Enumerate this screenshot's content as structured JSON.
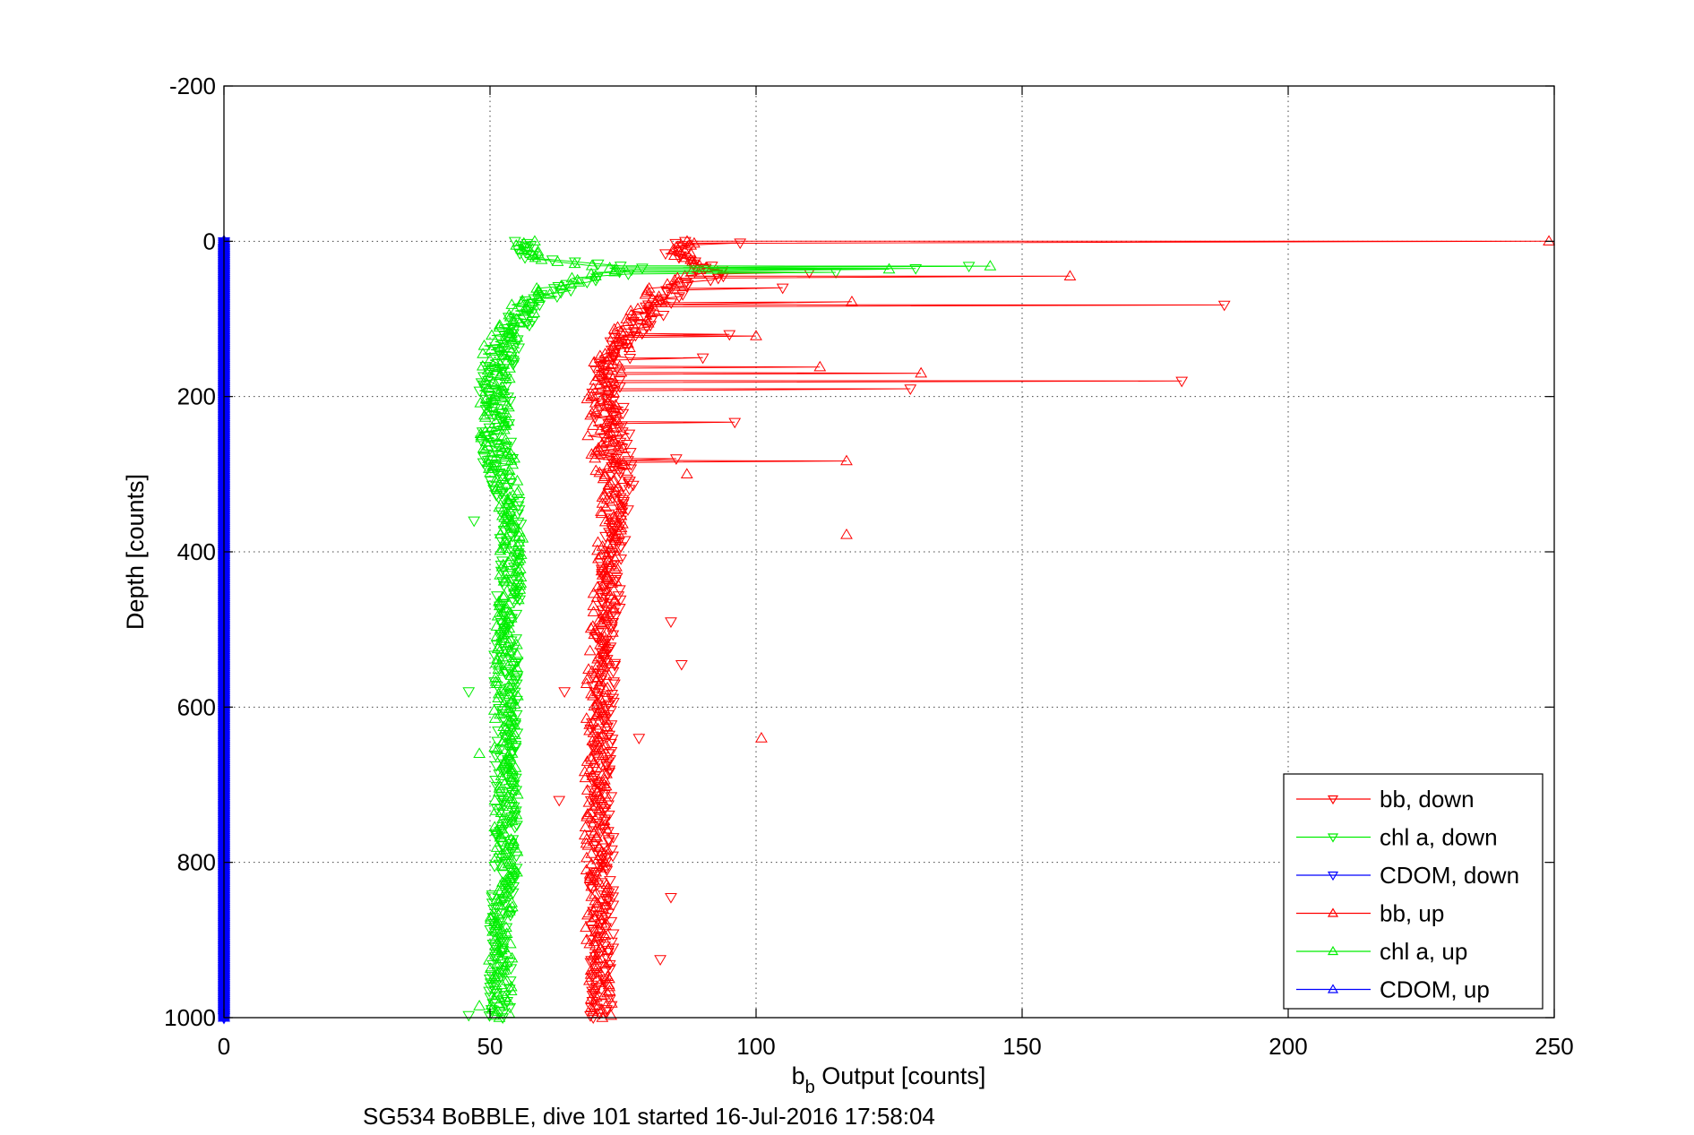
{
  "chart_data": {
    "type": "scatter",
    "xlabel_main": "b",
    "xlabel_sub": "b",
    "xlabel_rest": " Output [counts]",
    "ylabel": "Depth [counts]",
    "caption": "SG534 BoBBLE, dive 101 started 16-Jul-2016 17:58:04",
    "xlim": [
      0,
      250
    ],
    "ylim": [
      -200,
      1000
    ],
    "y_reversed": true,
    "grid": true,
    "legend_position": "bottom-right",
    "x_ticks": [
      "0",
      "50",
      "100",
      "150",
      "200",
      "250"
    ],
    "y_ticks": [
      "-200",
      "0",
      "200",
      "400",
      "600",
      "800",
      "1000"
    ],
    "series": [
      {
        "name": "bb, down",
        "color": "#ff0000",
        "marker": "triangle-down",
        "profile": [
          [
            0,
            86
          ],
          [
            20,
            84
          ],
          [
            40,
            95
          ],
          [
            60,
            85
          ],
          [
            80,
            82
          ],
          [
            100,
            79
          ],
          [
            130,
            75
          ],
          [
            160,
            73
          ],
          [
            200,
            72
          ],
          [
            240,
            73
          ],
          [
            280,
            74
          ],
          [
            300,
            75
          ],
          [
            350,
            74
          ],
          [
            400,
            73
          ],
          [
            500,
            72
          ],
          [
            600,
            71
          ],
          [
            700,
            71
          ],
          [
            800,
            71
          ],
          [
            900,
            71
          ],
          [
            1000,
            71
          ]
        ],
        "spikes": [
          [
            2,
            97
          ],
          [
            40,
            110
          ],
          [
            60,
            105
          ],
          [
            82,
            188
          ],
          [
            120,
            95
          ],
          [
            150,
            90
          ],
          [
            180,
            180
          ],
          [
            190,
            129
          ],
          [
            233,
            96
          ],
          [
            280,
            85
          ]
        ],
        "outliers": [
          [
            580,
            64
          ],
          [
            640,
            78
          ],
          [
            720,
            63
          ],
          [
            845,
            84
          ],
          [
            925,
            82
          ],
          [
            490,
            84
          ],
          [
            545,
            86
          ]
        ]
      },
      {
        "name": "chl a, down",
        "color": "#00ee00",
        "marker": "triangle-down",
        "profile": [
          [
            0,
            56
          ],
          [
            20,
            57
          ],
          [
            35,
            80
          ],
          [
            50,
            68
          ],
          [
            70,
            60
          ],
          [
            100,
            56
          ],
          [
            130,
            53
          ],
          [
            170,
            51
          ],
          [
            200,
            51
          ],
          [
            250,
            51
          ],
          [
            300,
            52
          ],
          [
            350,
            54
          ],
          [
            400,
            54
          ],
          [
            500,
            53
          ],
          [
            600,
            53
          ],
          [
            700,
            53
          ],
          [
            800,
            53
          ],
          [
            900,
            52
          ],
          [
            1000,
            52
          ]
        ],
        "spikes": [
          [
            32,
            140
          ],
          [
            35,
            130
          ],
          [
            40,
            115
          ]
        ],
        "outliers": [
          [
            360,
            47
          ],
          [
            580,
            46
          ],
          [
            997,
            46
          ]
        ]
      },
      {
        "name": "CDOM, down",
        "color": "#0000ff",
        "marker": "triangle-down",
        "constant_x": 0
      },
      {
        "name": "bb, up",
        "color": "#ff0000",
        "marker": "triangle-up",
        "profile": [
          [
            0,
            87
          ],
          [
            20,
            86
          ],
          [
            40,
            90
          ],
          [
            60,
            83
          ],
          [
            80,
            80
          ],
          [
            100,
            78
          ],
          [
            130,
            74
          ],
          [
            160,
            72
          ],
          [
            200,
            71
          ],
          [
            240,
            71
          ],
          [
            280,
            72
          ],
          [
            300,
            73
          ],
          [
            350,
            73
          ],
          [
            400,
            72
          ],
          [
            500,
            71
          ],
          [
            600,
            70
          ],
          [
            700,
            70
          ],
          [
            800,
            70
          ],
          [
            900,
            70
          ],
          [
            1000,
            71
          ]
        ],
        "spikes": [
          [
            0,
            249
          ],
          [
            45,
            159
          ],
          [
            78,
            118
          ],
          [
            162,
            112
          ],
          [
            170,
            131
          ],
          [
            283,
            117
          ],
          [
            122,
            100
          ]
        ],
        "outliers": [
          [
            378,
            117
          ],
          [
            640,
            101
          ],
          [
            300,
            87
          ]
        ]
      },
      {
        "name": "chl a, up",
        "color": "#00ee00",
        "marker": "triangle-up",
        "profile": [
          [
            0,
            57
          ],
          [
            20,
            57
          ],
          [
            35,
            75
          ],
          [
            50,
            66
          ],
          [
            70,
            58
          ],
          [
            100,
            55
          ],
          [
            130,
            52
          ],
          [
            170,
            51
          ],
          [
            200,
            51
          ],
          [
            250,
            51
          ],
          [
            300,
            53
          ],
          [
            350,
            54
          ],
          [
            400,
            54
          ],
          [
            500,
            53
          ],
          [
            600,
            53
          ],
          [
            700,
            53
          ],
          [
            800,
            53
          ],
          [
            900,
            52
          ],
          [
            1000,
            52
          ]
        ],
        "spikes": [
          [
            32,
            144
          ],
          [
            36,
            125
          ]
        ],
        "outliers": [
          [
            660,
            48
          ],
          [
            985,
            48
          ]
        ]
      },
      {
        "name": "CDOM, up",
        "color": "#0000ff",
        "marker": "triangle-up",
        "constant_x": 0
      }
    ]
  }
}
